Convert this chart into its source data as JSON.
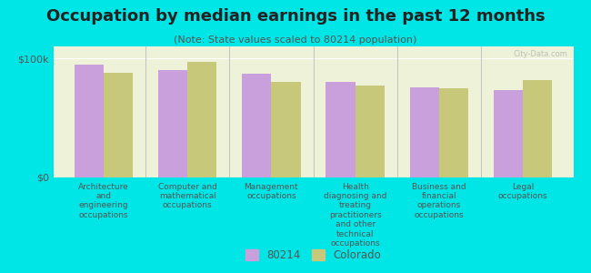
{
  "title": "Occupation by median earnings in the past 12 months",
  "subtitle": "(Note: State values scaled to 80214 population)",
  "background_color": "#00e5e5",
  "plot_bg_color": "#eef2d8",
  "categories": [
    "Architecture\nand\nengineering\noccupations",
    "Computer and\nmathematical\noccupations",
    "Management\noccupations",
    "Health\ndiagnosing and\ntreating\npractitioners\nand other\ntechnical\noccupations",
    "Business and\nfinancial\noperations\noccupations",
    "Legal\noccupations"
  ],
  "values_80214": [
    95000,
    90000,
    87000,
    80000,
    76000,
    73000
  ],
  "values_colorado": [
    88000,
    97000,
    80000,
    77000,
    75000,
    82000
  ],
  "color_80214": "#c9a0dc",
  "color_colorado": "#c8c87a",
  "ylim": [
    0,
    110000
  ],
  "yticks": [
    0,
    100000
  ],
  "ytick_labels": [
    "$0",
    "$100k"
  ],
  "legend_label_80214": "80214",
  "legend_label_colorado": "Colorado",
  "bar_width": 0.35,
  "watermark": "City-Data.com"
}
